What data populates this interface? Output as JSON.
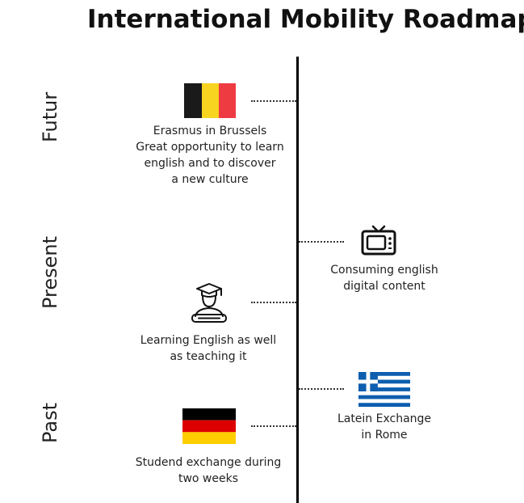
{
  "title": "International Mobility Roadmap",
  "eras": {
    "future": "Futur",
    "present": "Present",
    "past": "Past"
  },
  "entries": {
    "brussels": {
      "flag": "belgium-flag",
      "caption": "Erasmus in Brussels\nGreat opportunity to learn\nenglish and to discover\na new culture"
    },
    "digital": {
      "icon": "tv-icon",
      "caption": "Consuming english\ndigital content"
    },
    "teaching": {
      "icon": "graduate-icon",
      "caption": "Learning English as well\nas teaching it"
    },
    "rome": {
      "flag": "greece-flag",
      "caption": "Latein Exchange\nin Rome"
    },
    "germany": {
      "flag": "germany-flag",
      "caption": "Studend exchange during\ntwo weeks"
    }
  },
  "colors": {
    "belgium": [
      "#1a1a1a",
      "#f6d420",
      "#ee3b41"
    ],
    "germany": [
      "#000000",
      "#dd0000",
      "#ffce00"
    ],
    "greece": "#0d5eaf"
  }
}
